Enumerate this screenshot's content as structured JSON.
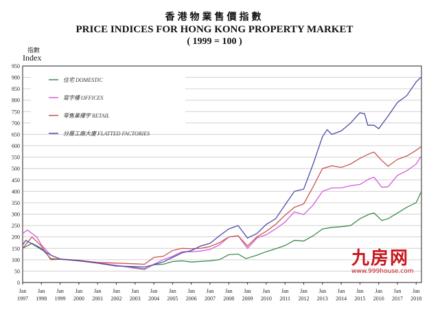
{
  "chart_data": {
    "type": "line",
    "title_zh": "香港物業售價指數",
    "title": "PRICE INDICES FOR HONG KONG PROPERTY MARKET",
    "subtitle": "( 1999 = 100 )",
    "ylabel_zh": "指數",
    "ylabel": "Index",
    "ylim": [
      0,
      950
    ],
    "yticks": [
      "0",
      "50",
      "100",
      "150",
      "200",
      "250",
      "300",
      "350",
      "400",
      "450",
      "500",
      "550",
      "600",
      "650",
      "700",
      "750",
      "800",
      "850",
      "900",
      "950"
    ],
    "xticks": [
      "1997",
      "1998",
      "1999",
      "2000",
      "2001",
      "2002",
      "2003",
      "2004",
      "2005",
      "2006",
      "2007",
      "2008",
      "2009",
      "2010",
      "2011",
      "2012",
      "2013",
      "2014",
      "2015",
      "2016",
      "2017",
      "2018"
    ],
    "xtick_prefix": "Jan",
    "grid": true,
    "legend_placement": "top-left",
    "series": [
      {
        "name": "住宅 DOMESTIC",
        "color": "#3a8a4a",
        "points": [
          [
            "1997-01",
            150
          ],
          [
            "1997-07",
            172
          ],
          [
            "1998-01",
            150
          ],
          [
            "1998-07",
            105
          ],
          [
            "1999-01",
            102
          ],
          [
            "2000-01",
            95
          ],
          [
            "2001-01",
            86
          ],
          [
            "2002-01",
            75
          ],
          [
            "2003-01",
            65
          ],
          [
            "2003-07",
            60
          ],
          [
            "2004-01",
            78
          ],
          [
            "2004-07",
            80
          ],
          [
            "2005-01",
            92
          ],
          [
            "2005-07",
            95
          ],
          [
            "2006-01",
            90
          ],
          [
            "2007-01",
            95
          ],
          [
            "2007-07",
            100
          ],
          [
            "2008-01",
            122
          ],
          [
            "2008-07",
            125
          ],
          [
            "2008-12",
            105
          ],
          [
            "2009-07",
            120
          ],
          [
            "2010-01",
            135
          ],
          [
            "2010-07",
            148
          ],
          [
            "2011-01",
            162
          ],
          [
            "2011-07",
            185
          ],
          [
            "2012-01",
            182
          ],
          [
            "2012-07",
            205
          ],
          [
            "2013-01",
            235
          ],
          [
            "2013-07",
            242
          ],
          [
            "2014-01",
            245
          ],
          [
            "2014-07",
            250
          ],
          [
            "2015-01",
            280
          ],
          [
            "2015-07",
            300
          ],
          [
            "2015-10",
            305
          ],
          [
            "2016-03",
            272
          ],
          [
            "2016-07",
            280
          ],
          [
            "2017-01",
            305
          ],
          [
            "2017-07",
            330
          ],
          [
            "2018-01",
            350
          ],
          [
            "2018-04",
            395
          ]
        ]
      },
      {
        "name": "寫字樓 OFFICES",
        "color": "#d35ad8",
        "points": [
          [
            "1997-01",
            215
          ],
          [
            "1997-04",
            230
          ],
          [
            "1997-10",
            200
          ],
          [
            "1998-01",
            165
          ],
          [
            "1998-07",
            120
          ],
          [
            "1999-01",
            103
          ],
          [
            "2000-01",
            98
          ],
          [
            "2001-01",
            87
          ],
          [
            "2002-01",
            75
          ],
          [
            "2003-01",
            62
          ],
          [
            "2003-07",
            57
          ],
          [
            "2004-01",
            80
          ],
          [
            "2004-07",
            100
          ],
          [
            "2005-01",
            115
          ],
          [
            "2005-07",
            135
          ],
          [
            "2006-01",
            135
          ],
          [
            "2006-07",
            138
          ],
          [
            "2007-01",
            145
          ],
          [
            "2007-07",
            165
          ],
          [
            "2008-01",
            200
          ],
          [
            "2008-07",
            205
          ],
          [
            "2009-01",
            150
          ],
          [
            "2009-07",
            195
          ],
          [
            "2010-01",
            210
          ],
          [
            "2010-07",
            235
          ],
          [
            "2011-01",
            265
          ],
          [
            "2011-07",
            310
          ],
          [
            "2012-01",
            298
          ],
          [
            "2012-07",
            340
          ],
          [
            "2013-01",
            400
          ],
          [
            "2013-07",
            415
          ],
          [
            "2014-01",
            415
          ],
          [
            "2014-07",
            425
          ],
          [
            "2015-01",
            430
          ],
          [
            "2015-07",
            455
          ],
          [
            "2015-10",
            462
          ],
          [
            "2016-03",
            418
          ],
          [
            "2016-07",
            420
          ],
          [
            "2017-01",
            470
          ],
          [
            "2017-07",
            490
          ],
          [
            "2018-01",
            520
          ],
          [
            "2018-04",
            552
          ]
        ]
      },
      {
        "name": "零售業樓宇 RETAIL",
        "color": "#c85450",
        "points": [
          [
            "1997-01",
            150
          ],
          [
            "1997-07",
            200
          ],
          [
            "1998-01",
            160
          ],
          [
            "1998-07",
            100
          ],
          [
            "1999-01",
            102
          ],
          [
            "2000-01",
            97
          ],
          [
            "2001-01",
            88
          ],
          [
            "2002-01",
            85
          ],
          [
            "2003-01",
            82
          ],
          [
            "2003-07",
            80
          ],
          [
            "2004-01",
            110
          ],
          [
            "2004-07",
            115
          ],
          [
            "2005-01",
            140
          ],
          [
            "2005-07",
            150
          ],
          [
            "2006-01",
            148
          ],
          [
            "2006-07",
            150
          ],
          [
            "2007-01",
            158
          ],
          [
            "2007-07",
            175
          ],
          [
            "2008-01",
            200
          ],
          [
            "2008-07",
            205
          ],
          [
            "2009-01",
            160
          ],
          [
            "2009-07",
            200
          ],
          [
            "2010-01",
            225
          ],
          [
            "2010-07",
            255
          ],
          [
            "2011-01",
            295
          ],
          [
            "2011-07",
            330
          ],
          [
            "2012-01",
            345
          ],
          [
            "2012-07",
            420
          ],
          [
            "2013-01",
            500
          ],
          [
            "2013-07",
            512
          ],
          [
            "2014-01",
            505
          ],
          [
            "2014-07",
            520
          ],
          [
            "2015-01",
            545
          ],
          [
            "2015-07",
            565
          ],
          [
            "2015-10",
            572
          ],
          [
            "2016-03",
            535
          ],
          [
            "2016-07",
            510
          ],
          [
            "2017-01",
            540
          ],
          [
            "2017-07",
            555
          ],
          [
            "2018-01",
            580
          ],
          [
            "2018-04",
            595
          ]
        ]
      },
      {
        "name": "分層工廠大廈 FLATTED FACTORIES",
        "color": "#4a4aa8",
        "points": [
          [
            "1997-01",
            165
          ],
          [
            "1997-03",
            185
          ],
          [
            "1997-07",
            170
          ],
          [
            "1998-01",
            145
          ],
          [
            "1998-07",
            120
          ],
          [
            "1999-01",
            103
          ],
          [
            "2000-01",
            95
          ],
          [
            "2001-01",
            85
          ],
          [
            "2002-01",
            72
          ],
          [
            "2003-01",
            70
          ],
          [
            "2003-07",
            68
          ],
          [
            "2004-01",
            78
          ],
          [
            "2004-07",
            90
          ],
          [
            "2005-01",
            110
          ],
          [
            "2005-07",
            130
          ],
          [
            "2006-01",
            140
          ],
          [
            "2006-07",
            160
          ],
          [
            "2007-01",
            172
          ],
          [
            "2007-07",
            205
          ],
          [
            "2008-01",
            235
          ],
          [
            "2008-07",
            250
          ],
          [
            "2009-01",
            195
          ],
          [
            "2009-07",
            215
          ],
          [
            "2010-01",
            255
          ],
          [
            "2010-07",
            280
          ],
          [
            "2011-01",
            340
          ],
          [
            "2011-07",
            400
          ],
          [
            "2012-01",
            410
          ],
          [
            "2012-07",
            520
          ],
          [
            "2013-01",
            640
          ],
          [
            "2013-04",
            670
          ],
          [
            "2013-07",
            650
          ],
          [
            "2014-01",
            665
          ],
          [
            "2014-07",
            700
          ],
          [
            "2015-01",
            745
          ],
          [
            "2015-04",
            740
          ],
          [
            "2015-06",
            690
          ],
          [
            "2015-10",
            690
          ],
          [
            "2016-01",
            675
          ],
          [
            "2016-07",
            730
          ],
          [
            "2017-01",
            790
          ],
          [
            "2017-07",
            820
          ],
          [
            "2018-01",
            880
          ],
          [
            "2018-04",
            900
          ]
        ]
      }
    ]
  },
  "watermark": {
    "logo": "九房网",
    "url": "www.999house.com"
  }
}
